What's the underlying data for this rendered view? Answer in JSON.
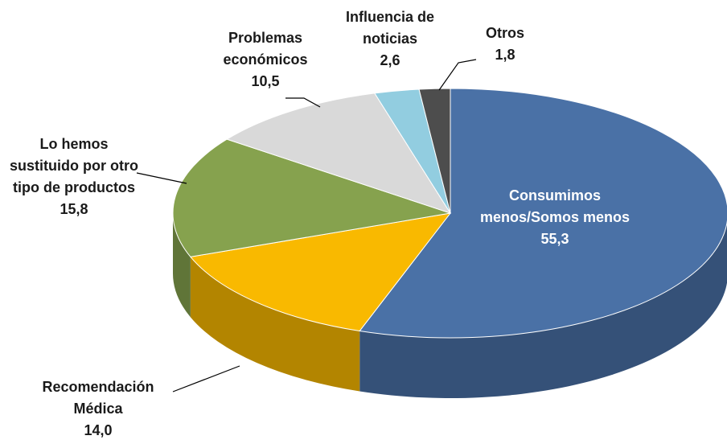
{
  "chart_data": {
    "type": "pie",
    "categories": [
      "Consumimos menos/Somos menos",
      "Recomendación Médica",
      "Lo hemos sustituido por otro tipo de productos",
      "Problemas económicos",
      "Influencia de noticias",
      "Otros"
    ],
    "values": [
      55.3,
      14.0,
      15.8,
      10.5,
      2.6,
      1.8
    ],
    "value_labels": [
      "55,3",
      "14,0",
      "15,8",
      "10,5",
      "2,6",
      "1,8"
    ],
    "colors": [
      "#4a71a6",
      "#f9b900",
      "#86a24e",
      "#d9d9d9",
      "#92cde0",
      "#4d4d4d"
    ]
  }
}
